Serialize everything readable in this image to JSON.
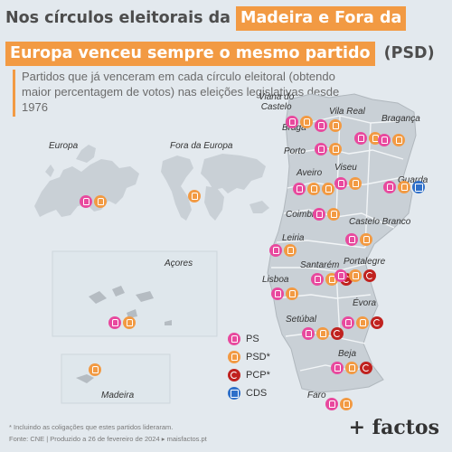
{
  "title": {
    "line1_plain": "Nos círculos eleitorais da",
    "line1_hl": "Madeira e Fora da",
    "line2_hl": "Europa venceu sempre o mesmo partido",
    "line2_tail": "(PSD)"
  },
  "subtitle": "Partidos que já venceram em cada círculo eleitoral (obtendo maior percentagem de votos) nas eleições legislativas desde 1976",
  "regions": {
    "europa": "Europa",
    "fora_europa": "Fora da Europa",
    "acores": "Açores",
    "madeira": "Madeira"
  },
  "districts": [
    {
      "name": "Viana do Castelo",
      "line1": "Viana do",
      "line2": "Castelo",
      "winners": [
        "PS",
        "PSD"
      ]
    },
    {
      "name": "Vila Real",
      "winners": [
        "PS",
        "PSD"
      ]
    },
    {
      "name": "Bragança",
      "winners": [
        "PS",
        "PSD"
      ]
    },
    {
      "name": "Braga",
      "winners": [
        "PS",
        "PSD"
      ]
    },
    {
      "name": "Porto",
      "winners": [
        "PS",
        "PSD"
      ]
    },
    {
      "name": "Aveiro",
      "winners": [
        "PS",
        "PSD",
        "PSD"
      ]
    },
    {
      "name": "Viseu",
      "winners": [
        "PS",
        "PSD"
      ]
    },
    {
      "name": "Guarda",
      "winners": [
        "PS",
        "PSD",
        "CDS"
      ]
    },
    {
      "name": "Coimbra",
      "winners": [
        "PS",
        "PSD"
      ]
    },
    {
      "name": "Castelo Branco",
      "winners": [
        "PS",
        "PSD"
      ]
    },
    {
      "name": "Leiria",
      "winners": [
        "PS",
        "PSD"
      ]
    },
    {
      "name": "Santarém",
      "winners": [
        "PS",
        "PSD",
        "PCP"
      ]
    },
    {
      "name": "Portalegre",
      "winners": [
        "PS",
        "PSD",
        "PCP"
      ]
    },
    {
      "name": "Lisboa",
      "winners": [
        "PS",
        "PSD"
      ]
    },
    {
      "name": "Évora",
      "winners": [
        "PS",
        "PSD",
        "PCP"
      ]
    },
    {
      "name": "Setúbal",
      "winners": [
        "PS",
        "PSD",
        "PCP"
      ]
    },
    {
      "name": "Beja",
      "winners": [
        "PS",
        "PSD",
        "PCP"
      ]
    },
    {
      "name": "Faro",
      "winners": [
        "PS",
        "PSD"
      ]
    },
    {
      "name": "Europa",
      "winners": [
        "PS",
        "PSD"
      ]
    },
    {
      "name": "Fora da Europa",
      "winners": [
        "PSD"
      ]
    },
    {
      "name": "Açores",
      "winners": [
        "PS",
        "PSD"
      ]
    },
    {
      "name": "Madeira",
      "winners": [
        "PSD"
      ]
    }
  ],
  "legend": [
    {
      "party": "PS",
      "label": "PS",
      "color": "#e8499e"
    },
    {
      "party": "PSD",
      "label": "PSD*",
      "color": "#f29a43"
    },
    {
      "party": "PCP",
      "label": "PCP*",
      "color": "#c0221f"
    },
    {
      "party": "CDS",
      "label": "CDS",
      "color": "#2e6fc9"
    }
  ],
  "footer": {
    "note": "* Incluindo as coligações que estes partidos lideraram.",
    "source": "Fonte: CNE | Produzido a 26 de fevereiro de 2024 ▸ maisfactos.pt"
  },
  "brand": "+ factos",
  "colors": {
    "accent": "#f29a43",
    "background": "#e3e9ee",
    "land": "#c9d0d6",
    "districts": "#a9b0b6"
  }
}
